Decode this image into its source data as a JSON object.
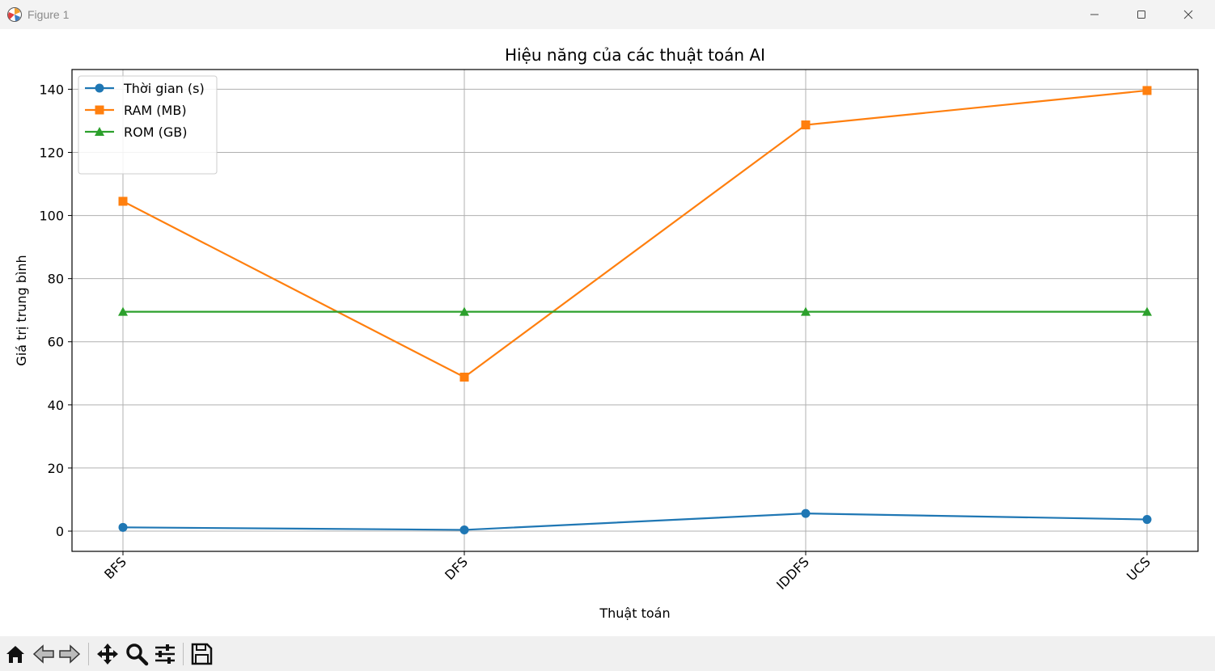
{
  "window": {
    "title": "Figure 1",
    "icons": [
      "matplotlib-icon",
      "minimize-icon",
      "maximize-icon",
      "close-icon"
    ]
  },
  "toolbar": {
    "buttons": [
      "home-icon",
      "back-icon",
      "forward-icon",
      "pan-icon",
      "zoom-icon",
      "configure-subplots-icon",
      "save-icon"
    ]
  },
  "chart_data": {
    "type": "line",
    "title": "Hiệu năng của các thuật toán AI",
    "xlabel": "Thuật toán",
    "ylabel": "Giá trị trung bình",
    "categories": [
      "BFS",
      "DFS",
      "IDDFS",
      "UCS"
    ],
    "yticks": [
      "0",
      "20",
      "40",
      "60",
      "80",
      "100",
      "120",
      "140"
    ],
    "ylim": [
      -6.5,
      146.5
    ],
    "grid": true,
    "legend_position": "top-left",
    "series": [
      {
        "name": "Thời gian (s)",
        "values": [
          1.2,
          0.4,
          5.6,
          3.7
        ],
        "color": "#1f77b4",
        "marker": "circle"
      },
      {
        "name": "RAM (MB)",
        "values": [
          104.5,
          48.8,
          128.7,
          139.6
        ],
        "color": "#ff7f0e",
        "marker": "square"
      },
      {
        "name": "ROM (GB)",
        "values": [
          69.5,
          69.5,
          69.5,
          69.5
        ],
        "color": "#2ca02c",
        "marker": "triangle"
      }
    ]
  }
}
